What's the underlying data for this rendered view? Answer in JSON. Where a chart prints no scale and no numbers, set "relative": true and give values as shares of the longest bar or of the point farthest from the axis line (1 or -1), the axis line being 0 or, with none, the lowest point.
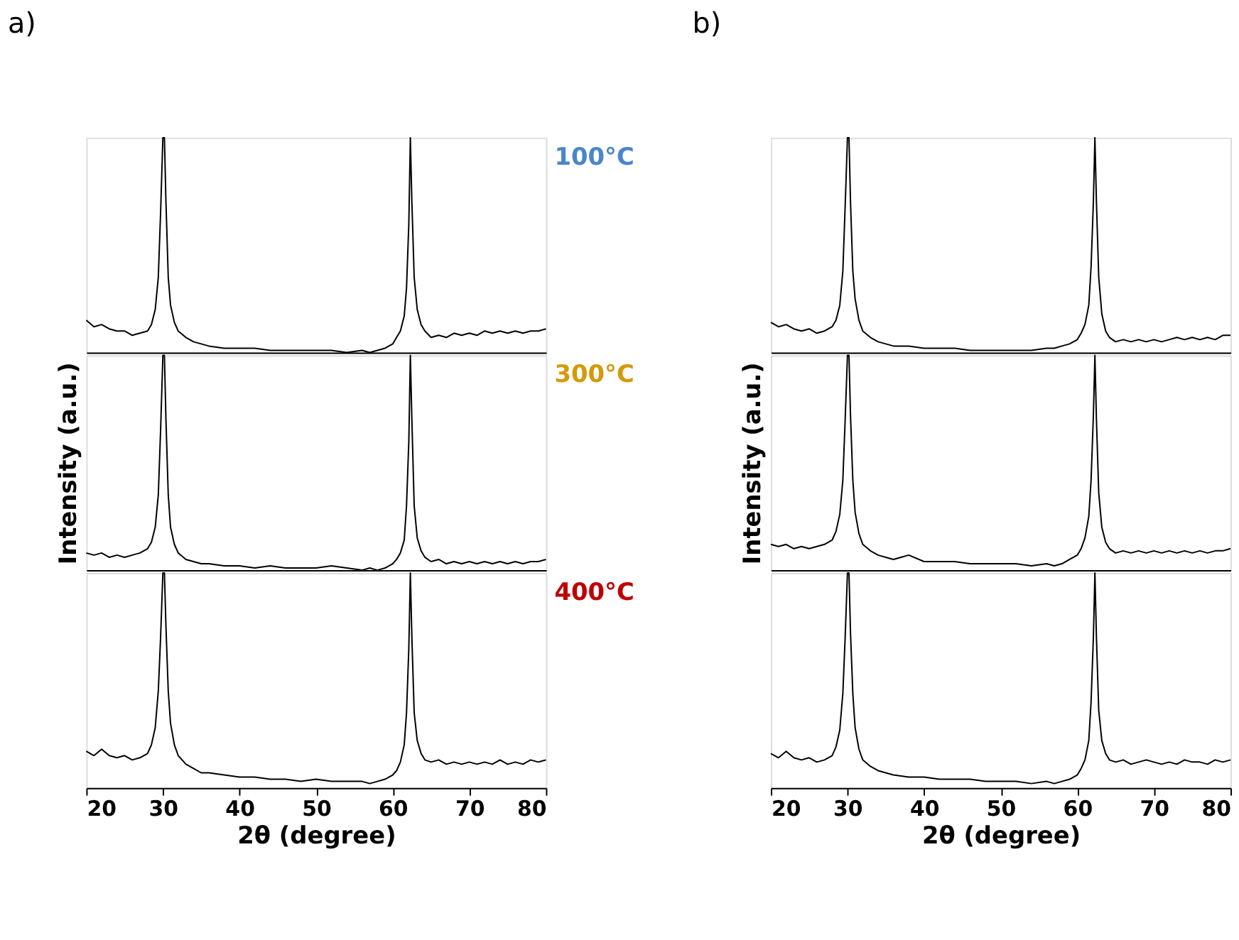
{
  "chart_data": [
    {
      "type": "line",
      "title": "a)",
      "annotations": [
        "100°C"
      ],
      "relative": true,
      "tick_labels": false,
      "xlim": [
        20,
        80
      ],
      "x": [
        20,
        21,
        22,
        23,
        24,
        25,
        26,
        27,
        28,
        28.5,
        29,
        29.4,
        29.7,
        30,
        30.2,
        30.4,
        30.7,
        31,
        31.5,
        32,
        33,
        34,
        35,
        36,
        38,
        40,
        42,
        44,
        46,
        48,
        50,
        52,
        54,
        56,
        57,
        58,
        59,
        60,
        60.5,
        61,
        61.5,
        61.8,
        62.1,
        62.3,
        62.5,
        62.8,
        63.2,
        63.7,
        64.2,
        65,
        66,
        67,
        68,
        69,
        70,
        71,
        72,
        73,
        74,
        75,
        76,
        77,
        78,
        79,
        80
      ],
      "series": [
        {
          "color": "#000000",
          "values": [
            0.15,
            0.12,
            0.13,
            0.11,
            0.1,
            0.1,
            0.08,
            0.09,
            0.1,
            0.13,
            0.2,
            0.35,
            0.65,
            1,
            1,
            0.7,
            0.35,
            0.22,
            0.14,
            0.1,
            0.07,
            0.05,
            0.04,
            0.03,
            0.02,
            0.02,
            0.02,
            0.01,
            0.01,
            0.01,
            0.01,
            0.01,
            0.0,
            0.01,
            0.0,
            0.01,
            0.02,
            0.04,
            0.07,
            0.1,
            0.17,
            0.3,
            0.6,
            1,
            0.7,
            0.35,
            0.2,
            0.13,
            0.1,
            0.07,
            0.08,
            0.07,
            0.09,
            0.08,
            0.09,
            0.08,
            0.1,
            0.09,
            0.1,
            0.09,
            0.1,
            0.09,
            0.1,
            0.1,
            0.11
          ]
        }
      ]
    },
    {
      "type": "line",
      "ylabel": "Intensity (a.u.)",
      "annotations": [
        "300°C"
      ],
      "relative": true,
      "tick_labels": false,
      "xlim": [
        20,
        80
      ],
      "x": [
        20,
        21,
        22,
        23,
        24,
        25,
        26,
        27,
        28,
        28.5,
        29,
        29.4,
        29.7,
        30,
        30.2,
        30.4,
        30.7,
        31,
        31.5,
        32,
        33,
        34,
        35,
        36,
        38,
        40,
        42,
        44,
        46,
        48,
        50,
        52,
        54,
        56,
        57,
        58,
        59,
        60,
        60.5,
        61,
        61.5,
        61.8,
        62.1,
        62.3,
        62.5,
        62.8,
        63.2,
        63.7,
        64.2,
        65,
        66,
        67,
        68,
        69,
        70,
        71,
        72,
        73,
        74,
        75,
        76,
        77,
        78,
        79,
        80
      ],
      "series": [
        {
          "color": "#000000",
          "values": [
            0.08,
            0.07,
            0.08,
            0.06,
            0.07,
            0.06,
            0.07,
            0.08,
            0.1,
            0.13,
            0.2,
            0.35,
            0.65,
            1,
            1,
            0.7,
            0.35,
            0.2,
            0.12,
            0.08,
            0.05,
            0.04,
            0.03,
            0.03,
            0.02,
            0.02,
            0.01,
            0.02,
            0.01,
            0.01,
            0.01,
            0.02,
            0.01,
            0.0,
            0.01,
            0.0,
            0.01,
            0.03,
            0.05,
            0.08,
            0.14,
            0.3,
            0.6,
            1,
            0.7,
            0.3,
            0.15,
            0.09,
            0.06,
            0.04,
            0.05,
            0.03,
            0.04,
            0.03,
            0.04,
            0.03,
            0.04,
            0.03,
            0.04,
            0.03,
            0.04,
            0.03,
            0.04,
            0.04,
            0.05
          ]
        }
      ]
    },
    {
      "type": "line",
      "xlabel": "2θ (degree)",
      "annotations": [
        "400°C"
      ],
      "relative": true,
      "tick_labels": "x",
      "xlim": [
        20,
        80
      ],
      "xticks": [
        20,
        30,
        40,
        50,
        60,
        70,
        80
      ],
      "x": [
        20,
        21,
        22,
        23,
        24,
        25,
        26,
        27,
        28,
        28.5,
        29,
        29.4,
        29.7,
        30,
        30.2,
        30.4,
        30.7,
        31,
        31.5,
        32,
        33,
        34,
        35,
        36,
        38,
        40,
        42,
        44,
        46,
        48,
        50,
        52,
        54,
        56,
        57,
        58,
        59,
        60,
        60.5,
        61,
        61.5,
        61.8,
        62.1,
        62.3,
        62.5,
        62.8,
        63.2,
        63.7,
        64.2,
        65,
        66,
        67,
        68,
        69,
        70,
        71,
        72,
        73,
        74,
        75,
        76,
        77,
        78,
        79,
        80
      ],
      "series": [
        {
          "color": "#000000",
          "values": [
            0.17,
            0.15,
            0.18,
            0.15,
            0.14,
            0.15,
            0.13,
            0.14,
            0.16,
            0.2,
            0.28,
            0.45,
            0.7,
            1,
            1,
            0.75,
            0.45,
            0.3,
            0.2,
            0.15,
            0.11,
            0.09,
            0.07,
            0.07,
            0.06,
            0.05,
            0.05,
            0.04,
            0.04,
            0.03,
            0.04,
            0.03,
            0.03,
            0.03,
            0.02,
            0.03,
            0.04,
            0.06,
            0.08,
            0.12,
            0.2,
            0.35,
            0.65,
            1,
            0.7,
            0.35,
            0.22,
            0.16,
            0.13,
            0.12,
            0.13,
            0.11,
            0.12,
            0.11,
            0.12,
            0.11,
            0.12,
            0.11,
            0.13,
            0.11,
            0.12,
            0.11,
            0.13,
            0.12,
            0.13
          ]
        }
      ]
    },
    {
      "type": "line",
      "title": "b)",
      "relative": true,
      "tick_labels": false,
      "xlim": [
        20,
        80
      ],
      "x": [
        20,
        21,
        22,
        23,
        24,
        25,
        26,
        27,
        28,
        28.5,
        29,
        29.4,
        29.7,
        30,
        30.2,
        30.4,
        30.7,
        31,
        31.5,
        32,
        33,
        34,
        35,
        36,
        38,
        40,
        42,
        44,
        46,
        48,
        50,
        52,
        54,
        56,
        57,
        58,
        59,
        60,
        60.5,
        61,
        61.5,
        61.8,
        62.1,
        62.3,
        62.5,
        62.8,
        63.2,
        63.7,
        64.2,
        65,
        66,
        67,
        68,
        69,
        70,
        71,
        72,
        73,
        74,
        75,
        76,
        77,
        78,
        79,
        80
      ],
      "series": [
        {
          "color": "#000000",
          "values": [
            0.14,
            0.12,
            0.13,
            0.11,
            0.1,
            0.11,
            0.09,
            0.1,
            0.12,
            0.15,
            0.22,
            0.38,
            0.68,
            1,
            1,
            0.7,
            0.38,
            0.25,
            0.15,
            0.1,
            0.07,
            0.05,
            0.04,
            0.03,
            0.03,
            0.02,
            0.02,
            0.02,
            0.01,
            0.01,
            0.01,
            0.01,
            0.01,
            0.02,
            0.02,
            0.03,
            0.04,
            0.06,
            0.09,
            0.13,
            0.22,
            0.4,
            0.7,
            1,
            0.7,
            0.35,
            0.18,
            0.1,
            0.07,
            0.05,
            0.06,
            0.05,
            0.06,
            0.05,
            0.06,
            0.05,
            0.06,
            0.07,
            0.06,
            0.07,
            0.06,
            0.07,
            0.06,
            0.08,
            0.08
          ]
        }
      ]
    },
    {
      "type": "line",
      "ylabel": "Intensity (a.u.)",
      "relative": true,
      "tick_labels": false,
      "xlim": [
        20,
        80
      ],
      "x": [
        20,
        21,
        22,
        23,
        24,
        25,
        26,
        27,
        28,
        28.5,
        29,
        29.4,
        29.7,
        30,
        30.2,
        30.4,
        30.7,
        31,
        31.5,
        32,
        33,
        34,
        35,
        36,
        38,
        40,
        42,
        44,
        46,
        48,
        50,
        52,
        54,
        56,
        57,
        58,
        59,
        60,
        60.5,
        61,
        61.5,
        61.8,
        62.1,
        62.3,
        62.5,
        62.8,
        63.2,
        63.7,
        64.2,
        65,
        66,
        67,
        68,
        69,
        70,
        71,
        72,
        73,
        74,
        75,
        76,
        77,
        78,
        79,
        80
      ],
      "series": [
        {
          "color": "#000000",
          "values": [
            0.12,
            0.11,
            0.12,
            0.1,
            0.11,
            0.1,
            0.11,
            0.12,
            0.14,
            0.18,
            0.26,
            0.42,
            0.7,
            1,
            1,
            0.72,
            0.42,
            0.27,
            0.17,
            0.12,
            0.09,
            0.07,
            0.06,
            0.05,
            0.07,
            0.04,
            0.04,
            0.04,
            0.03,
            0.03,
            0.03,
            0.03,
            0.02,
            0.03,
            0.02,
            0.03,
            0.05,
            0.07,
            0.1,
            0.15,
            0.25,
            0.42,
            0.72,
            1,
            0.7,
            0.36,
            0.2,
            0.13,
            0.1,
            0.08,
            0.09,
            0.08,
            0.09,
            0.08,
            0.09,
            0.08,
            0.09,
            0.08,
            0.09,
            0.08,
            0.09,
            0.08,
            0.09,
            0.09,
            0.1
          ]
        }
      ]
    },
    {
      "type": "line",
      "xlabel": "2θ (degree)",
      "relative": true,
      "tick_labels": "x",
      "xlim": [
        20,
        80
      ],
      "xticks": [
        20,
        30,
        40,
        50,
        60,
        70,
        80
      ],
      "x": [
        20,
        21,
        22,
        23,
        24,
        25,
        26,
        27,
        28,
        28.5,
        29,
        29.4,
        29.7,
        30,
        30.2,
        30.4,
        30.7,
        31,
        31.5,
        32,
        33,
        34,
        35,
        36,
        38,
        40,
        42,
        44,
        46,
        48,
        50,
        52,
        54,
        56,
        57,
        58,
        59,
        60,
        60.5,
        61,
        61.5,
        61.8,
        62.1,
        62.3,
        62.5,
        62.8,
        63.2,
        63.7,
        64.2,
        65,
        66,
        67,
        68,
        69,
        70,
        71,
        72,
        73,
        74,
        75,
        76,
        77,
        78,
        79,
        80
      ],
      "series": [
        {
          "color": "#000000",
          "values": [
            0.16,
            0.14,
            0.17,
            0.14,
            0.13,
            0.14,
            0.12,
            0.13,
            0.15,
            0.19,
            0.27,
            0.44,
            0.7,
            1,
            1,
            0.72,
            0.44,
            0.28,
            0.18,
            0.13,
            0.1,
            0.08,
            0.07,
            0.06,
            0.05,
            0.05,
            0.04,
            0.04,
            0.04,
            0.03,
            0.03,
            0.03,
            0.02,
            0.03,
            0.02,
            0.03,
            0.04,
            0.06,
            0.09,
            0.13,
            0.22,
            0.4,
            0.7,
            1,
            0.7,
            0.36,
            0.22,
            0.16,
            0.13,
            0.12,
            0.13,
            0.11,
            0.12,
            0.13,
            0.12,
            0.11,
            0.12,
            0.11,
            0.13,
            0.12,
            0.12,
            0.11,
            0.13,
            0.12,
            0.13
          ]
        }
      ]
    }
  ]
}
